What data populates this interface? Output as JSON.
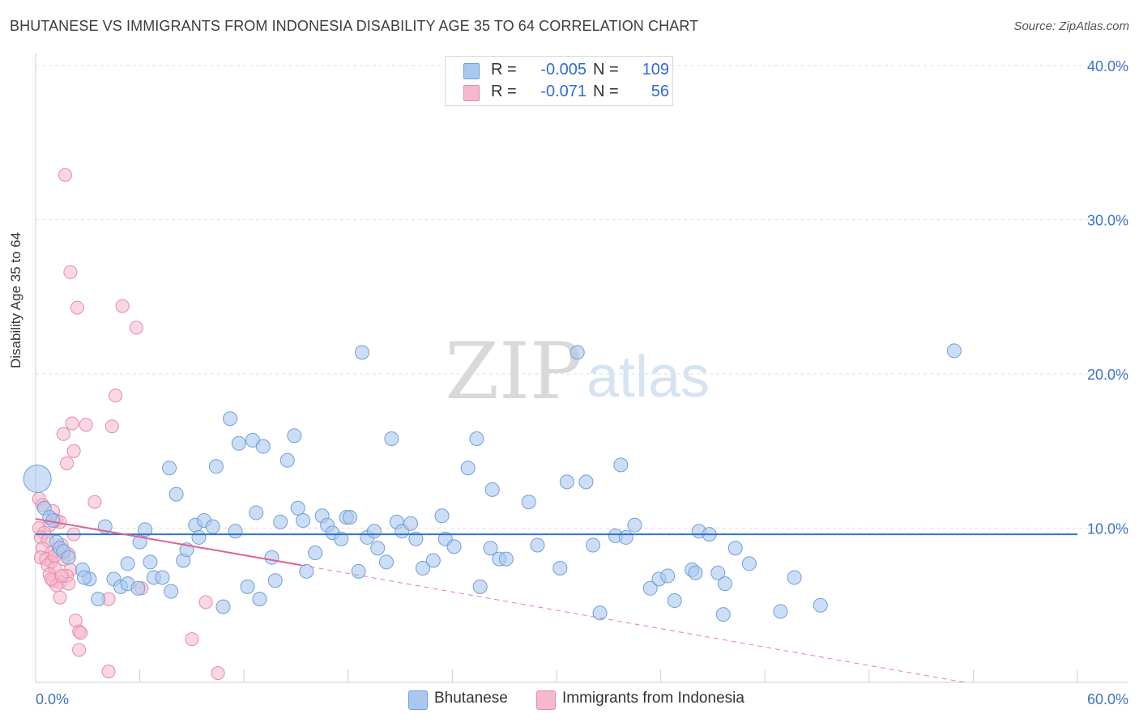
{
  "header": {
    "title": "BHUTANESE VS IMMIGRANTS FROM INDONESIA DISABILITY AGE 35 TO 64 CORRELATION CHART",
    "source": "Source: ZipAtlas.com"
  },
  "watermark": {
    "zip": "ZIP",
    "atlas": "atlas"
  },
  "legend_top": {
    "rows": [
      {
        "r_label": "R =",
        "r_value": "-0.005",
        "n_label": "N =",
        "n_value": "109"
      },
      {
        "r_label": "R =",
        "r_value": "-0.071",
        "n_label": "N =",
        "n_value": "56"
      }
    ]
  },
  "chart_data": {
    "type": "scatter",
    "title": "BHUTANESE VS IMMIGRANTS FROM INDONESIA DISABILITY AGE 35 TO 64 CORRELATION CHART",
    "xlabel": "",
    "ylabel": "Disability Age 35 to 64",
    "xlim": [
      0,
      60
    ],
    "ylim": [
      0,
      40
    ],
    "x_tick_labels": [
      "0.0%",
      "60.0%"
    ],
    "y_tick_labels": [
      "10.0%",
      "20.0%",
      "30.0%",
      "40.0%"
    ],
    "y_ticks": [
      10,
      20,
      30,
      40
    ],
    "grid": true,
    "legend_placement": "bottom",
    "colors": {
      "bhutanese_fill": "#aac8ef",
      "bhutanese_stroke": "#6f9fdd",
      "bhutanese_line": "#2f72d0",
      "indonesia_fill": "#f6b8cb",
      "indonesia_stroke": "#e889a8",
      "indonesia_line": "#e0608d",
      "tick_label": "#3d72cc"
    },
    "series": [
      {
        "name": "Bhutanese",
        "R": -0.005,
        "N": 109,
        "trend": {
          "x": [
            0,
            60
          ],
          "y": [
            9.6,
            9.6
          ]
        },
        "points": [
          [
            0.1,
            13.2,
            1.6
          ],
          [
            0.5,
            11.3,
            1
          ],
          [
            0.8,
            10.7,
            1
          ],
          [
            1.0,
            10.5,
            1
          ],
          [
            1.2,
            9.1,
            1
          ],
          [
            1.4,
            8.7,
            1
          ],
          [
            1.6,
            8.5,
            1
          ],
          [
            1.9,
            8.1,
            1
          ],
          [
            2.7,
            7.3,
            1
          ],
          [
            3.1,
            6.7,
            1
          ],
          [
            2.8,
            6.8,
            1
          ],
          [
            3.6,
            5.4,
            1
          ],
          [
            4.0,
            10.1,
            1
          ],
          [
            4.5,
            6.7,
            1
          ],
          [
            4.9,
            6.2,
            1
          ],
          [
            5.3,
            6.4,
            1
          ],
          [
            5.3,
            7.7,
            1
          ],
          [
            5.9,
            6.1,
            1
          ],
          [
            6.0,
            9.1,
            1
          ],
          [
            6.3,
            9.9,
            1
          ],
          [
            6.6,
            7.8,
            1
          ],
          [
            6.8,
            6.8,
            1
          ],
          [
            7.3,
            6.8,
            1
          ],
          [
            7.7,
            13.9,
            1
          ],
          [
            7.8,
            5.9,
            1
          ],
          [
            8.1,
            12.2,
            1
          ],
          [
            8.5,
            7.9,
            1
          ],
          [
            8.7,
            8.6,
            1
          ],
          [
            9.2,
            10.2,
            1
          ],
          [
            9.4,
            9.4,
            1
          ],
          [
            9.7,
            10.5,
            1
          ],
          [
            10.2,
            10.1,
            1
          ],
          [
            10.4,
            14.0,
            1
          ],
          [
            10.8,
            4.9,
            1
          ],
          [
            11.2,
            17.1,
            1
          ],
          [
            11.5,
            9.8,
            1
          ],
          [
            11.7,
            15.5,
            1
          ],
          [
            12.2,
            6.2,
            1
          ],
          [
            12.5,
            15.7,
            1
          ],
          [
            12.7,
            11.0,
            1
          ],
          [
            12.9,
            5.4,
            1
          ],
          [
            13.1,
            15.3,
            1
          ],
          [
            13.6,
            8.1,
            1
          ],
          [
            13.8,
            6.6,
            1
          ],
          [
            14.1,
            10.4,
            1
          ],
          [
            14.5,
            14.4,
            1
          ],
          [
            14.9,
            16.0,
            1
          ],
          [
            15.1,
            11.3,
            1
          ],
          [
            15.4,
            10.5,
            1
          ],
          [
            15.6,
            7.2,
            1
          ],
          [
            16.1,
            8.4,
            1
          ],
          [
            16.5,
            10.8,
            1
          ],
          [
            16.8,
            10.2,
            1
          ],
          [
            17.1,
            9.7,
            1
          ],
          [
            17.6,
            9.3,
            1
          ],
          [
            17.9,
            10.7,
            1
          ],
          [
            18.1,
            10.7,
            1
          ],
          [
            18.6,
            7.2,
            1
          ],
          [
            18.8,
            21.4,
            1
          ],
          [
            19.1,
            9.4,
            1
          ],
          [
            19.5,
            9.8,
            1
          ],
          [
            19.7,
            8.7,
            1
          ],
          [
            20.2,
            7.8,
            1
          ],
          [
            20.5,
            15.8,
            1
          ],
          [
            20.8,
            10.4,
            1
          ],
          [
            21.1,
            9.8,
            1
          ],
          [
            21.6,
            10.3,
            1
          ],
          [
            21.9,
            9.3,
            1
          ],
          [
            22.3,
            7.4,
            1
          ],
          [
            22.9,
            7.9,
            1
          ],
          [
            23.4,
            10.8,
            1
          ],
          [
            23.6,
            9.3,
            1
          ],
          [
            24.1,
            8.8,
            1
          ],
          [
            24.9,
            13.9,
            1
          ],
          [
            25.4,
            15.8,
            1
          ],
          [
            25.6,
            6.2,
            1
          ],
          [
            26.2,
            8.7,
            1
          ],
          [
            26.3,
            12.5,
            1
          ],
          [
            26.7,
            8.0,
            1
          ],
          [
            27.1,
            8.0,
            1
          ],
          [
            28.4,
            11.7,
            1
          ],
          [
            28.9,
            8.9,
            1
          ],
          [
            30.2,
            7.4,
            1
          ],
          [
            30.6,
            13.0,
            1
          ],
          [
            31.2,
            21.4,
            1
          ],
          [
            31.7,
            13.0,
            1
          ],
          [
            32.1,
            8.9,
            1
          ],
          [
            32.5,
            4.5,
            1
          ],
          [
            33.4,
            9.5,
            1
          ],
          [
            33.7,
            14.1,
            1
          ],
          [
            34.0,
            9.4,
            1
          ],
          [
            34.5,
            10.2,
            1
          ],
          [
            35.4,
            6.1,
            1
          ],
          [
            35.9,
            6.7,
            1
          ],
          [
            36.4,
            6.9,
            1
          ],
          [
            36.8,
            5.3,
            1
          ],
          [
            37.8,
            7.3,
            1
          ],
          [
            38.0,
            7.1,
            1
          ],
          [
            38.2,
            9.8,
            1
          ],
          [
            38.8,
            9.6,
            1
          ],
          [
            39.3,
            7.1,
            1
          ],
          [
            39.6,
            4.4,
            1
          ],
          [
            39.7,
            6.4,
            1
          ],
          [
            40.3,
            8.7,
            1
          ],
          [
            41.1,
            7.7,
            1
          ],
          [
            42.9,
            4.6,
            1
          ],
          [
            43.7,
            6.8,
            1
          ],
          [
            45.2,
            5.0,
            1
          ],
          [
            52.9,
            21.5,
            1
          ]
        ]
      },
      {
        "name": "Immigrants from Indonesia",
        "R": -0.071,
        "N": 56,
        "trend": {
          "x": [
            0,
            15.3
          ],
          "y": [
            10.6,
            7.6
          ]
        },
        "trend_dashed": {
          "x": [
            15.3,
            53.5
          ],
          "y": [
            7.6,
            0
          ]
        },
        "points": [
          [
            1.7,
            32.9
          ],
          [
            2.0,
            26.6
          ],
          [
            2.4,
            24.3
          ],
          [
            5.0,
            24.4
          ],
          [
            5.8,
            23.0
          ],
          [
            4.6,
            18.6
          ],
          [
            2.1,
            16.8
          ],
          [
            2.9,
            16.7
          ],
          [
            4.4,
            16.6
          ],
          [
            1.6,
            16.1
          ],
          [
            2.2,
            15.0
          ],
          [
            1.8,
            14.2
          ],
          [
            3.4,
            11.7
          ],
          [
            0.2,
            11.9
          ],
          [
            0.4,
            11.5
          ],
          [
            1.0,
            11.1
          ],
          [
            1.2,
            10.5
          ],
          [
            1.4,
            10.4
          ],
          [
            0.8,
            10.2
          ],
          [
            0.2,
            10.0
          ],
          [
            0.5,
            9.7
          ],
          [
            0.3,
            9.4
          ],
          [
            2.2,
            9.6
          ],
          [
            0.7,
            9.2
          ],
          [
            1.5,
            8.9
          ],
          [
            0.4,
            8.7
          ],
          [
            0.9,
            8.4
          ],
          [
            1.3,
            8.5
          ],
          [
            1.9,
            8.3
          ],
          [
            0.3,
            8.1
          ],
          [
            0.6,
            8.0
          ],
          [
            0.9,
            7.8
          ],
          [
            1.6,
            8.0
          ],
          [
            0.7,
            7.6
          ],
          [
            1.1,
            7.4
          ],
          [
            2.0,
            7.3
          ],
          [
            0.8,
            7.0
          ],
          [
            1.8,
            6.9
          ],
          [
            1.0,
            6.6
          ],
          [
            1.4,
            6.5
          ],
          [
            1.9,
            6.4
          ],
          [
            1.2,
            6.3
          ],
          [
            0.9,
            6.7
          ],
          [
            1.5,
            6.9
          ],
          [
            6.1,
            6.1
          ],
          [
            1.4,
            5.5
          ],
          [
            4.2,
            5.4
          ],
          [
            9.8,
            5.2
          ],
          [
            2.3,
            4.0
          ],
          [
            2.5,
            3.3
          ],
          [
            2.6,
            3.2
          ],
          [
            2.5,
            2.1
          ],
          [
            9.0,
            2.8
          ],
          [
            4.2,
            0.7
          ],
          [
            10.5,
            0.6
          ],
          [
            1.1,
            8.2
          ]
        ]
      }
    ]
  },
  "legend_bottom": {
    "items": [
      {
        "label": "Bhutanese"
      },
      {
        "label": "Immigrants from Indonesia"
      }
    ]
  },
  "axes": {
    "ylabel": "Disability Age 35 to 64"
  }
}
